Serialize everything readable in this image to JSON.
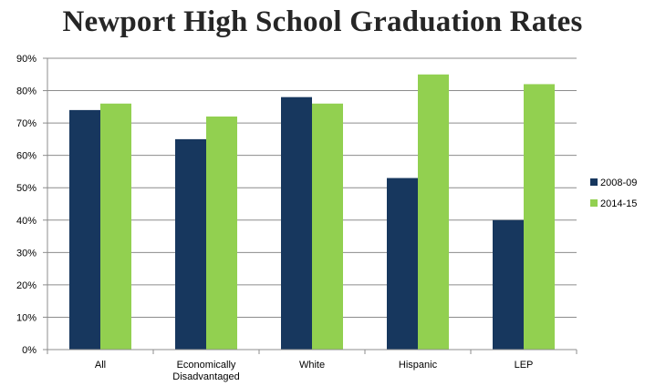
{
  "chart_data": {
    "type": "bar",
    "title": "Newport High School Graduation Rates",
    "categories": [
      "All",
      "Economically Disadvantaged",
      "White",
      "Hispanic",
      "LEP"
    ],
    "category_label_lines": [
      [
        "All"
      ],
      [
        "Economically",
        "Disadvantaged"
      ],
      [
        "White"
      ],
      [
        "Hispanic"
      ],
      [
        "LEP"
      ]
    ],
    "series": [
      {
        "name": "2008-09",
        "values": [
          74,
          65,
          78,
          53,
          40
        ],
        "color": "#17375e"
      },
      {
        "name": "2014-15",
        "values": [
          76,
          72,
          76,
          85,
          82
        ],
        "color": "#92d050"
      }
    ],
    "ylim": [
      0,
      90
    ],
    "yticks": [
      "0%",
      "10%",
      "20%",
      "30%",
      "40%",
      "50%",
      "60%",
      "70%",
      "80%",
      "90%"
    ],
    "ytick_values": [
      0,
      10,
      20,
      30,
      40,
      50,
      60,
      70,
      80,
      90
    ],
    "xlabel": "",
    "ylabel": "",
    "grid": true,
    "legend_position": "right"
  }
}
